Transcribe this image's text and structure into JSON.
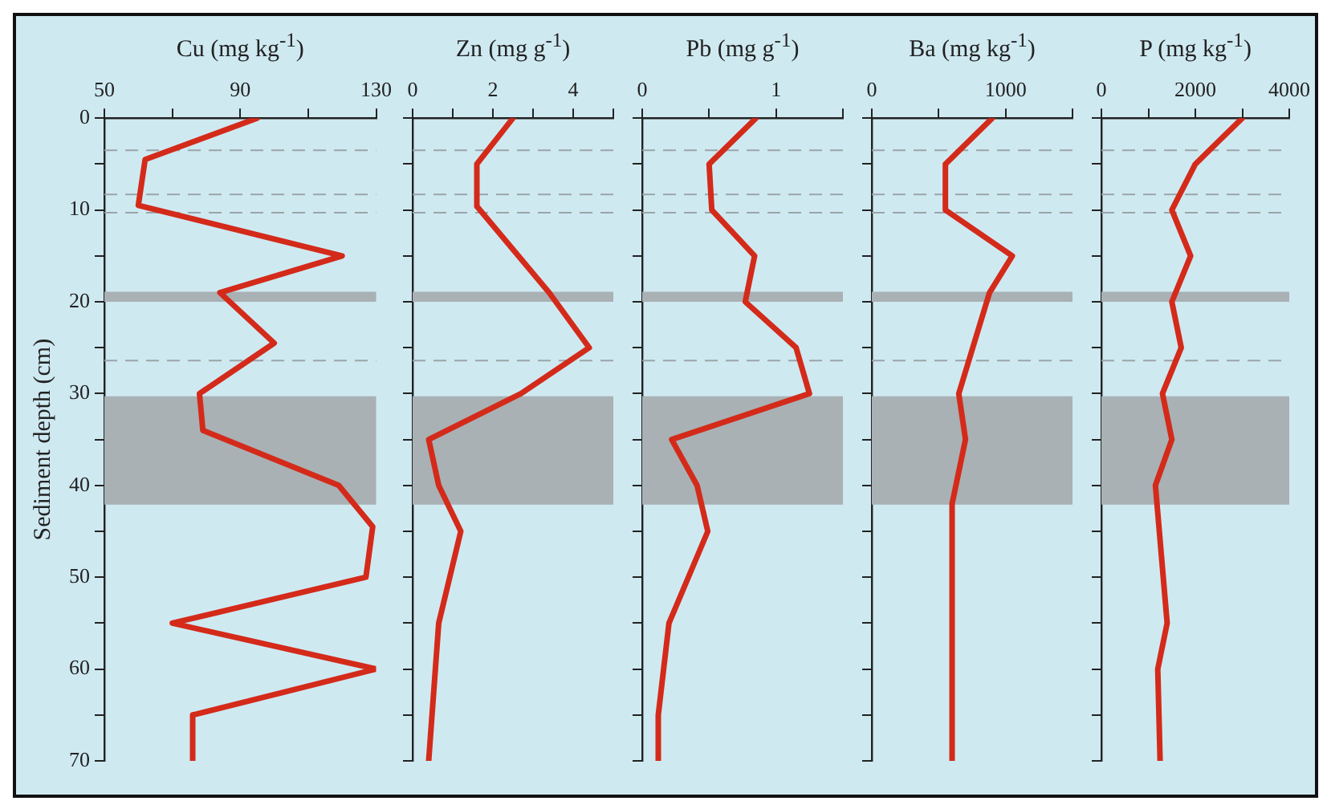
{
  "chart_data": [
    {
      "type": "line",
      "xlabel": "Cu (mg kg$^{-1}$)",
      "ylabel": "Sediment depth (cm)",
      "xlim": [
        50,
        130
      ],
      "xticks": [
        50,
        {
          "value": 70,
          "label": null
        },
        90,
        {
          "value": 110,
          "label": null
        },
        130
      ],
      "ylim": [
        70,
        0
      ],
      "yticks": [
        0,
        {
          "value": 5,
          "label": null
        },
        10,
        {
          "value": 15,
          "label": null
        },
        20,
        {
          "value": 25,
          "label": null
        },
        30,
        {
          "value": 35,
          "label": null
        },
        40,
        {
          "value": 45,
          "label": null
        },
        50,
        {
          "value": 55,
          "label": null
        },
        60,
        {
          "value": 65,
          "label": null
        },
        70
      ],
      "marker": "none",
      "series": [
        {
          "color": "#d42a1a",
          "x": [
            95,
            62,
            60,
            120,
            84,
            100,
            78,
            79,
            119,
            129,
            127,
            70,
            130,
            76,
            76
          ],
          "values": [
            0,
            4.5,
            9.5,
            15,
            19,
            24.5,
            30,
            34,
            40,
            44.5,
            50,
            55,
            60,
            65,
            70
          ]
        }
      ],
      "ref_lines": [
        {
          "axis": "y",
          "value": 3.5,
          "color": "#9aa5a8",
          "line_style": "dashed"
        },
        {
          "axis": "y",
          "value": 8.3,
          "color": "#9aa5a8",
          "line_style": "dashed"
        },
        {
          "axis": "y",
          "value": 10.3,
          "color": "#9aa5a8",
          "line_style": "dashed"
        },
        {
          "axis": "y",
          "value": 26.4,
          "color": "#9aa5a8",
          "line_style": "dashed"
        }
      ],
      "bands": [
        {
          "axis": "y",
          "from": 18.9,
          "to": 20,
          "color": "#a9b1b4"
        },
        {
          "axis": "y",
          "from": 30.3,
          "to": 42.1,
          "color": "#a9b1b4"
        }
      ]
    },
    {
      "type": "line",
      "xlabel": "Zn (mg g$^{-1}$)",
      "xlim": [
        0,
        5
      ],
      "xticks": [
        0,
        {
          "value": 1,
          "label": null
        },
        2,
        {
          "value": 3,
          "label": null
        },
        4,
        {
          "value": 5,
          "label": null
        }
      ],
      "ylim": [
        70,
        0
      ],
      "yticks": [
        0,
        {
          "value": 5,
          "label": null
        },
        10,
        {
          "value": 15,
          "label": null
        },
        20,
        {
          "value": 25,
          "label": null
        },
        30,
        {
          "value": 35,
          "label": null
        },
        40,
        {
          "value": 45,
          "label": null
        },
        50,
        {
          "value": 55,
          "label": null
        },
        60,
        {
          "value": 65,
          "label": null
        },
        70
      ],
      "tick_labels": "x",
      "marker": "none",
      "series": [
        {
          "color": "#d42a1a",
          "x": [
            2.5,
            1.6,
            1.6,
            3.4,
            4.4,
            2.7,
            0.4,
            0.65,
            1.2,
            0.65,
            0.4
          ],
          "values": [
            0,
            5,
            9.6,
            19,
            25,
            30,
            35,
            40,
            45,
            55,
            70
          ]
        }
      ],
      "ref_lines": [
        {
          "axis": "y",
          "value": 3.5,
          "color": "#9aa5a8",
          "line_style": "dashed"
        },
        {
          "axis": "y",
          "value": 8.3,
          "color": "#9aa5a8",
          "line_style": "dashed"
        },
        {
          "axis": "y",
          "value": 10.3,
          "color": "#9aa5a8",
          "line_style": "dashed"
        },
        {
          "axis": "y",
          "value": 26.4,
          "color": "#9aa5a8",
          "line_style": "dashed"
        }
      ],
      "bands": [
        {
          "axis": "y",
          "from": 18.9,
          "to": 20,
          "color": "#a9b1b4"
        },
        {
          "axis": "y",
          "from": 30.3,
          "to": 42.1,
          "color": "#a9b1b4"
        }
      ]
    },
    {
      "type": "line",
      "xlabel": "Pb (mg g$^{-1}$)",
      "xlim": [
        0,
        1.5
      ],
      "xticks": [
        0,
        {
          "value": 0.5,
          "label": null
        },
        1,
        {
          "value": 1.5,
          "label": null
        }
      ],
      "ylim": [
        70,
        0
      ],
      "yticks": [
        0,
        {
          "value": 5,
          "label": null
        },
        10,
        {
          "value": 15,
          "label": null
        },
        20,
        {
          "value": 25,
          "label": null
        },
        30,
        {
          "value": 35,
          "label": null
        },
        40,
        {
          "value": 45,
          "label": null
        },
        50,
        {
          "value": 55,
          "label": null
        },
        60,
        {
          "value": 65,
          "label": null
        },
        70
      ],
      "tick_labels": "x",
      "marker": "none",
      "series": [
        {
          "color": "#d42a1a",
          "x": [
            0.85,
            0.5,
            0.52,
            0.84,
            0.77,
            1.15,
            1.25,
            0.22,
            0.41,
            0.49,
            0.2,
            0.12,
            0.12
          ],
          "values": [
            0,
            5,
            10,
            15,
            20,
            25,
            30,
            35,
            40,
            45,
            55,
            65,
            70
          ]
        }
      ],
      "ref_lines": [
        {
          "axis": "y",
          "value": 3.5,
          "color": "#9aa5a8",
          "line_style": "dashed"
        },
        {
          "axis": "y",
          "value": 8.3,
          "color": "#9aa5a8",
          "line_style": "dashed"
        },
        {
          "axis": "y",
          "value": 10.3,
          "color": "#9aa5a8",
          "line_style": "dashed"
        },
        {
          "axis": "y",
          "value": 26.4,
          "color": "#9aa5a8",
          "line_style": "dashed"
        }
      ],
      "bands": [
        {
          "axis": "y",
          "from": 18.9,
          "to": 20,
          "color": "#a9b1b4"
        },
        {
          "axis": "y",
          "from": 30.3,
          "to": 42.1,
          "color": "#a9b1b4"
        }
      ]
    },
    {
      "type": "line",
      "xlabel": "Ba (mg kg$^{-1}$)",
      "xlim": [
        0,
        1500
      ],
      "xticks": [
        0,
        {
          "value": 500,
          "label": null
        },
        1000,
        {
          "value": 1500,
          "label": null
        }
      ],
      "ylim": [
        70,
        0
      ],
      "yticks": [
        0,
        {
          "value": 5,
          "label": null
        },
        10,
        {
          "value": 15,
          "label": null
        },
        20,
        {
          "value": 25,
          "label": null
        },
        30,
        {
          "value": 35,
          "label": null
        },
        40,
        {
          "value": 45,
          "label": null
        },
        50,
        {
          "value": 55,
          "label": null
        },
        60,
        {
          "value": 65,
          "label": null
        },
        70
      ],
      "tick_labels": "x",
      "marker": "none",
      "series": [
        {
          "color": "#d42a1a",
          "x": [
            900,
            550,
            550,
            1050,
            880,
            650,
            700,
            600,
            600
          ],
          "values": [
            0,
            5,
            10,
            15,
            19,
            30,
            35,
            42,
            70
          ]
        }
      ],
      "ref_lines": [
        {
          "axis": "y",
          "value": 3.5,
          "color": "#9aa5a8",
          "line_style": "dashed"
        },
        {
          "axis": "y",
          "value": 8.3,
          "color": "#9aa5a8",
          "line_style": "dashed"
        },
        {
          "axis": "y",
          "value": 10.3,
          "color": "#9aa5a8",
          "line_style": "dashed"
        },
        {
          "axis": "y",
          "value": 26.4,
          "color": "#9aa5a8",
          "line_style": "dashed"
        }
      ],
      "bands": [
        {
          "axis": "y",
          "from": 18.9,
          "to": 20,
          "color": "#a9b1b4"
        },
        {
          "axis": "y",
          "from": 30.3,
          "to": 42.1,
          "color": "#a9b1b4"
        }
      ]
    },
    {
      "type": "line",
      "xlabel": "P (mg kg$^{-1}$)",
      "xlim": [
        0,
        4000
      ],
      "xticks": [
        0,
        {
          "value": 1000,
          "label": null
        },
        2000,
        {
          "value": 3000,
          "label": null
        },
        4000
      ],
      "ylim": [
        70,
        0
      ],
      "yticks": [
        0,
        {
          "value": 5,
          "label": null
        },
        10,
        {
          "value": 15,
          "label": null
        },
        20,
        {
          "value": 25,
          "label": null
        },
        30,
        {
          "value": 35,
          "label": null
        },
        40,
        {
          "value": 45,
          "label": null
        },
        50,
        {
          "value": 55,
          "label": null
        },
        60,
        {
          "value": 65,
          "label": null
        },
        70
      ],
      "tick_labels": "x",
      "marker": "none",
      "series": [
        {
          "color": "#d42a1a",
          "x": [
            3000,
            2000,
            1500,
            1900,
            1500,
            1700,
            1300,
            1500,
            1150,
            1400,
            1200,
            1250
          ],
          "values": [
            0,
            5,
            10,
            15,
            20,
            25,
            30,
            35,
            40,
            55,
            60,
            70
          ]
        }
      ],
      "ref_lines": [
        {
          "axis": "y",
          "value": 3.5,
          "color": "#9aa5a8",
          "line_style": "dashed"
        },
        {
          "axis": "y",
          "value": 8.3,
          "color": "#9aa5a8",
          "line_style": "dashed"
        },
        {
          "axis": "y",
          "value": 10.3,
          "color": "#9aa5a8",
          "line_style": "dashed"
        },
        {
          "axis": "y",
          "value": 26.4,
          "color": "#9aa5a8",
          "line_style": "dashed"
        }
      ],
      "bands": [
        {
          "axis": "y",
          "from": 18.9,
          "to": 20,
          "color": "#a9b1b4"
        },
        {
          "axis": "y",
          "from": 30.3,
          "to": 42.1,
          "color": "#a9b1b4"
        }
      ]
    }
  ]
}
